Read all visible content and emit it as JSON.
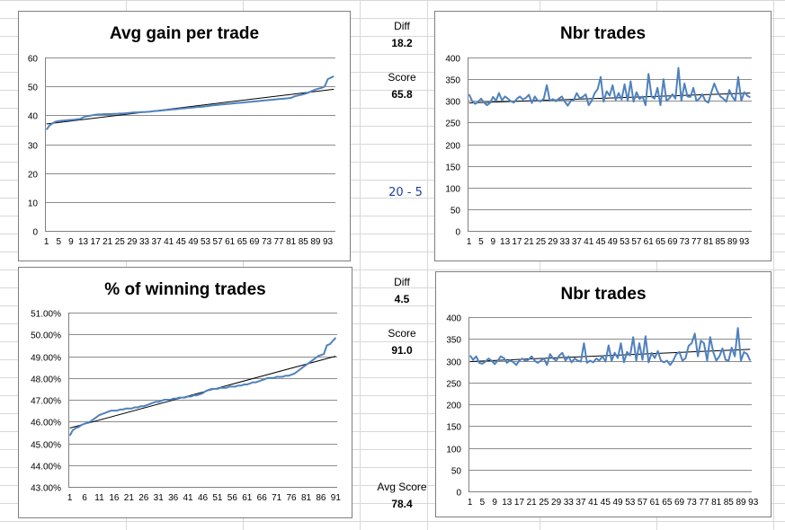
{
  "sheet": {
    "diff_label": "Diff",
    "score_label": "Score",
    "avg_score_label": "Avg Score",
    "top_diff": "18.2",
    "top_score": "65.8",
    "range_note": "20 - 5",
    "bottom_diff": "4.5",
    "bottom_score": "91.0",
    "avg_score": "78.4"
  },
  "colors": {
    "series": "#4f81bd",
    "trend": "#000000",
    "grid": "#8c8c8c",
    "cell_grid": "#d8d8d8"
  },
  "chart_data": [
    {
      "type": "line",
      "title": "Avg gain per trade",
      "ylim": [
        0,
        60
      ],
      "yticks": [
        0,
        10,
        20,
        30,
        40,
        50,
        60
      ],
      "ytick_labels": [
        "0",
        "10",
        "20",
        "30",
        "40",
        "50",
        "60"
      ],
      "x_tick_labels": [
        "1",
        "5",
        "9",
        "13",
        "17",
        "21",
        "25",
        "29",
        "33",
        "37",
        "41",
        "45",
        "49",
        "53",
        "57",
        "61",
        "65",
        "69",
        "73",
        "77",
        "81",
        "85",
        "89",
        "93"
      ],
      "series": [
        {
          "values": [
            35,
            36.5,
            37.2,
            37.8,
            38,
            38.1,
            38.2,
            38.3,
            38.4,
            38.5,
            38.6,
            38.7,
            39.3,
            39.6,
            39.8,
            40,
            40.2,
            40.3,
            40.3,
            40.4,
            40.4,
            40.4,
            40.5,
            40.5,
            40.6,
            40.6,
            40.7,
            40.8,
            40.9,
            41,
            41,
            41.1,
            41.1,
            41.2,
            41.3,
            41.4,
            41.5,
            41.6,
            41.7,
            41.8,
            41.9,
            42,
            42.1,
            42.2,
            42.3,
            42.4,
            42.5,
            42.6,
            42.7,
            42.8,
            42.9,
            43,
            43.1,
            43.2,
            43.4,
            43.5,
            43.6,
            43.7,
            43.8,
            43.9,
            44,
            44.1,
            44.2,
            44.3,
            44.4,
            44.5,
            44.6,
            44.7,
            44.8,
            44.9,
            45,
            45.1,
            45.2,
            45.3,
            45.4,
            45.5,
            45.6,
            45.7,
            45.8,
            45.9,
            46,
            46.5,
            46.8,
            47,
            47.3,
            47.6,
            48,
            48.5,
            48.9,
            49.2,
            49.5,
            50,
            52.5,
            53,
            53.5
          ]
        }
      ],
      "trend": [
        37,
        49
      ]
    },
    {
      "type": "line",
      "title": "Nbr trades",
      "ylim": [
        0,
        400
      ],
      "yticks": [
        0,
        50,
        100,
        150,
        200,
        250,
        300,
        350,
        400
      ],
      "ytick_labels": [
        "0",
        "50",
        "100",
        "150",
        "200",
        "250",
        "300",
        "350",
        "400"
      ],
      "x_tick_labels": [
        "1",
        "5",
        "9",
        "13",
        "17",
        "21",
        "25",
        "29",
        "33",
        "37",
        "41",
        "45",
        "49",
        "53",
        "57",
        "61",
        "65",
        "69",
        "73",
        "77",
        "81",
        "85",
        "89",
        "93"
      ],
      "series": [
        {
          "values": [
            315,
            300,
            293,
            297,
            305,
            296,
            290,
            295,
            309,
            300,
            318,
            301,
            310,
            305,
            299,
            296,
            305,
            310,
            303,
            307,
            314,
            295,
            310,
            300,
            299,
            305,
            336,
            300,
            304,
            299,
            305,
            310,
            298,
            289,
            300,
            302,
            318,
            306,
            309,
            315,
            290,
            300,
            318,
            327,
            355,
            298,
            322,
            312,
            336,
            302,
            318,
            303,
            338,
            300,
            345,
            298,
            320,
            304,
            310,
            290,
            362,
            310,
            305,
            330,
            290,
            350,
            300,
            306,
            315,
            305,
            376,
            300,
            340,
            310,
            309,
            330,
            300,
            305,
            315,
            300,
            296,
            320,
            340,
            322,
            310,
            305,
            298,
            325,
            310,
            300,
            355,
            300,
            320,
            312,
            308
          ]
        }
      ],
      "trend": [
        295,
        318
      ]
    },
    {
      "type": "line",
      "title": "% of winning trades",
      "ylim": [
        43,
        51
      ],
      "yticks": [
        43,
        44,
        45,
        46,
        47,
        48,
        49,
        50,
        51
      ],
      "ytick_labels": [
        "43.00%",
        "44.00%",
        "45.00%",
        "46.00%",
        "47.00%",
        "48.00%",
        "49.00%",
        "50.00%",
        "51.00%"
      ],
      "x_tick_labels": [
        "1",
        "6",
        "11",
        "16",
        "21",
        "26",
        "31",
        "36",
        "41",
        "46",
        "51",
        "56",
        "61",
        "66",
        "71",
        "76",
        "81",
        "86",
        "91"
      ],
      "series": [
        {
          "values": [
            45.35,
            45.6,
            45.7,
            45.75,
            45.85,
            45.9,
            45.95,
            46,
            46.1,
            46.2,
            46.3,
            46.35,
            46.4,
            46.45,
            46.5,
            46.5,
            46.5,
            46.55,
            46.55,
            46.6,
            46.6,
            46.6,
            46.65,
            46.65,
            46.7,
            46.7,
            46.75,
            46.8,
            46.85,
            46.9,
            46.9,
            46.95,
            47,
            47,
            47,
            47.05,
            47.05,
            47.1,
            47.1,
            47.1,
            47.15,
            47.15,
            47.2,
            47.2,
            47.25,
            47.3,
            47.4,
            47.45,
            47.5,
            47.5,
            47.5,
            47.55,
            47.55,
            47.55,
            47.6,
            47.6,
            47.6,
            47.65,
            47.65,
            47.7,
            47.7,
            47.75,
            47.8,
            47.8,
            47.85,
            47.9,
            47.95,
            48,
            48,
            48,
            48.05,
            48.05,
            48.05,
            48.1,
            48.1,
            48.15,
            48.2,
            48.3,
            48.4,
            48.5,
            48.6,
            48.7,
            48.8,
            48.9,
            49,
            49.05,
            49.1,
            49.5,
            49.55,
            49.7,
            49.85
          ]
        }
      ],
      "trend": [
        45.7,
        49
      ]
    },
    {
      "type": "line",
      "title": "Nbr trades",
      "ylim": [
        0,
        400
      ],
      "yticks": [
        0,
        50,
        100,
        150,
        200,
        250,
        300,
        350,
        400
      ],
      "ytick_labels": [
        "0",
        "50",
        "100",
        "150",
        "200",
        "250",
        "300",
        "350",
        "400"
      ],
      "x_tick_labels": [
        "1",
        "5",
        "9",
        "13",
        "17",
        "21",
        "25",
        "29",
        "33",
        "37",
        "41",
        "45",
        "49",
        "53",
        "57",
        "61",
        "65",
        "69",
        "73",
        "77",
        "81",
        "85",
        "89",
        "93"
      ],
      "series": [
        {
          "values": [
            312,
            302,
            310,
            295,
            293,
            298,
            305,
            300,
            292,
            300,
            310,
            306,
            295,
            301,
            297,
            290,
            300,
            305,
            299,
            302,
            310,
            300,
            295,
            300,
            305,
            290,
            315,
            305,
            300,
            312,
            318,
            300,
            310,
            296,
            305,
            300,
            298,
            340,
            295,
            300,
            296,
            305,
            300,
            310,
            298,
            335,
            300,
            318,
            306,
            340,
            296,
            320,
            312,
            354,
            300,
            340,
            302,
            356,
            296,
            318,
            306,
            322,
            300,
            296,
            300,
            290,
            300,
            315,
            320,
            300,
            306,
            334,
            340,
            362,
            310,
            346,
            340,
            300,
            354,
            320,
            300,
            310,
            328,
            302,
            300,
            330,
            310,
            375,
            300,
            320,
            315,
            300
          ]
        }
      ],
      "trend": [
        298,
        326
      ]
    }
  ]
}
